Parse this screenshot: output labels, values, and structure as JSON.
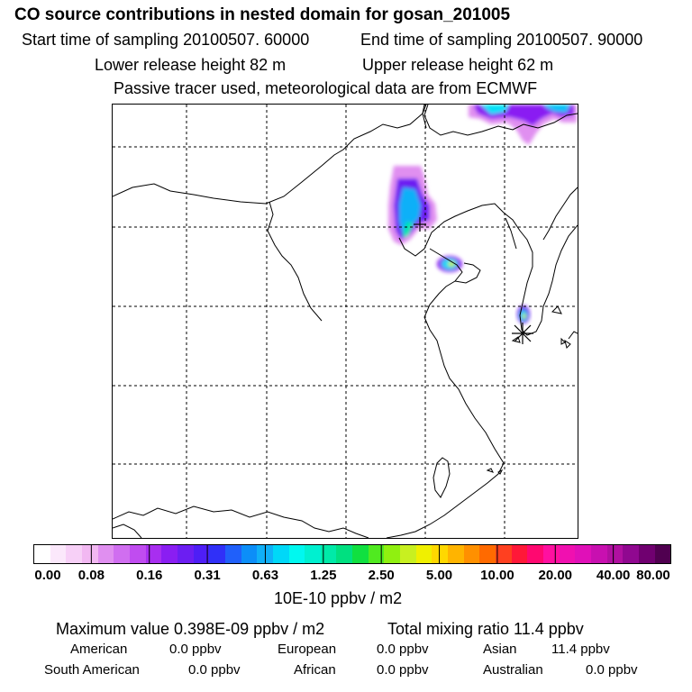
{
  "header": {
    "title": "CO  source contributions in nested domain for gosan_201005",
    "start_time": "Start time of sampling 20100507. 60000",
    "end_time": "End time of sampling 20100507. 90000",
    "lower_height": "Lower release height   82 m",
    "upper_height": "Upper release height   62 m",
    "tracer_note": "Passive tracer used, meteorological data are from ECMWF"
  },
  "colorbar": {
    "colors": [
      "#ffffff",
      "#fbe8fb",
      "#f7d0f7",
      "#f2b8f2",
      "#e08ff0",
      "#d06ef0",
      "#c04cf0",
      "#a82ef0",
      "#8a1ef2",
      "#6c1ef2",
      "#4e1ef6",
      "#3030f8",
      "#2060fa",
      "#0c8ef8",
      "#10b0f8",
      "#00d8f8",
      "#00f8f0",
      "#00f0d0",
      "#00eaa8",
      "#00e080",
      "#10e040",
      "#50ea20",
      "#90f010",
      "#c8f020",
      "#f0f000",
      "#ffd800",
      "#ffb400",
      "#ff9000",
      "#ff6a00",
      "#ff4020",
      "#ff1838",
      "#ff0870",
      "#ff10a0",
      "#f010b0",
      "#e010b8",
      "#c810b0",
      "#b010a0",
      "#900890",
      "#700070",
      "#500050"
    ],
    "tick_labels": [
      "0.00",
      "0.08",
      "0.16",
      "0.31",
      "0.63",
      "1.25",
      "2.50",
      "5.00",
      "10.00",
      "20.00",
      "40.00",
      "80.00"
    ],
    "unit": "10E-10 ppbv / m2"
  },
  "stats": {
    "max_value": "Maximum value  0.398E-09 ppbv / m2",
    "total_mixing": "Total mixing ratio       11.4 ppbv",
    "american_label": "American",
    "american_value": "0.0 ppbv",
    "european_label": "European",
    "european_value": "0.0 ppbv",
    "asian_label": "Asian",
    "asian_value": "11.4 ppbv",
    "south_american_label": "South American",
    "south_american_value": "0.0 ppbv",
    "african_label": "African",
    "african_value": "0.0 ppbv",
    "australian_label": "Australian",
    "australian_value": "0.0 ppbv"
  }
}
